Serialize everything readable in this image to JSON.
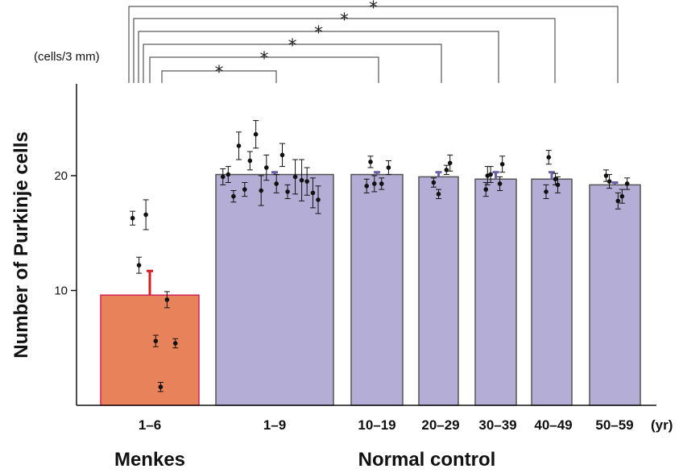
{
  "chart_data": {
    "type": "bar",
    "ylabel": "Number of Purkinje cells",
    "y_unit": "(cells/3 mm)",
    "x_unit": "(yr)",
    "ylim": [
      0,
      27
    ],
    "y_ticks": [
      10,
      20
    ],
    "categories": [
      "1–6",
      "1–9",
      "10–19",
      "20–29",
      "30–39",
      "40–49",
      "50–59"
    ],
    "groups": [
      {
        "label": "Menkes",
        "categories": [
          "1–6"
        ]
      },
      {
        "label": "Normal control",
        "categories": [
          "1–9",
          "10–19",
          "20–29",
          "30–39",
          "40–49",
          "50–59"
        ]
      }
    ],
    "bars": [
      {
        "category": "1–6",
        "group": "Menkes",
        "mean": 9.6,
        "sd_upper": 11.7,
        "color": "#e8825a",
        "edge": "#d0245a",
        "err_color": "#d42020"
      },
      {
        "category": "1–9",
        "group": "Normal control",
        "mean": 20.1,
        "sd_upper": 20.3,
        "color": "#b4aed6",
        "edge": "#555555",
        "err_color": "#6a5fa8"
      },
      {
        "category": "10–19",
        "group": "Normal control",
        "mean": 20.1,
        "sd_upper": 20.3,
        "color": "#b4aed6",
        "edge": "#555555",
        "err_color": "#6a5fa8"
      },
      {
        "category": "20–29",
        "group": "Normal control",
        "mean": 19.9,
        "sd_upper": 20.3,
        "color": "#b4aed6",
        "edge": "#555555",
        "err_color": "#6a5fa8"
      },
      {
        "category": "30–39",
        "group": "Normal control",
        "mean": 19.7,
        "sd_upper": 20.3,
        "color": "#b4aed6",
        "edge": "#555555",
        "err_color": "#6a5fa8"
      },
      {
        "category": "40–49",
        "group": "Normal control",
        "mean": 19.7,
        "sd_upper": 20.3,
        "color": "#b4aed6",
        "edge": "#555555",
        "err_color": "#6a5fa8"
      },
      {
        "category": "50–59",
        "group": "Normal control",
        "mean": 19.2,
        "sd_upper": 19.4,
        "color": "#b4aed6",
        "edge": "#555555",
        "err_color": "#6a5fa8"
      }
    ],
    "points": [
      {
        "category": "1–6",
        "offset": -0.35,
        "y": 16.3,
        "err": 0.6
      },
      {
        "category": "1–6",
        "offset": -0.22,
        "y": 12.2,
        "err": 0.7
      },
      {
        "category": "1–6",
        "offset": -0.08,
        "y": 16.6,
        "err": 1.3
      },
      {
        "category": "1–6",
        "offset": 0.12,
        "y": 5.6,
        "err": 0.5
      },
      {
        "category": "1–6",
        "offset": 0.22,
        "y": 1.6,
        "err": 0.4
      },
      {
        "category": "1–6",
        "offset": 0.35,
        "y": 9.2,
        "err": 0.7
      },
      {
        "category": "1–6",
        "offset": 0.52,
        "y": 5.4,
        "err": 0.4
      },
      {
        "category": "1–9",
        "offset": -0.88,
        "y": 19.9,
        "err": 0.7
      },
      {
        "category": "1–9",
        "offset": -0.79,
        "y": 20.1,
        "err": 0.7
      },
      {
        "category": "1–9",
        "offset": -0.7,
        "y": 18.2,
        "err": 0.5
      },
      {
        "category": "1–9",
        "offset": -0.61,
        "y": 22.6,
        "err": 1.2
      },
      {
        "category": "1–9",
        "offset": -0.51,
        "y": 18.8,
        "err": 0.6
      },
      {
        "category": "1–9",
        "offset": -0.42,
        "y": 21.3,
        "err": 0.8
      },
      {
        "category": "1–9",
        "offset": -0.32,
        "y": 23.6,
        "err": 1.2
      },
      {
        "category": "1–9",
        "offset": -0.23,
        "y": 18.7,
        "err": 1.3
      },
      {
        "category": "1–9",
        "offset": -0.14,
        "y": 20.7,
        "err": 1.1
      },
      {
        "category": "1–9",
        "offset": 0.03,
        "y": 19.3,
        "err": 0.8
      },
      {
        "category": "1–9",
        "offset": 0.13,
        "y": 21.8,
        "err": 1.0
      },
      {
        "category": "1–9",
        "offset": 0.22,
        "y": 18.6,
        "err": 0.6
      },
      {
        "category": "1–9",
        "offset": 0.35,
        "y": 19.9,
        "err": 1.5
      },
      {
        "category": "1–9",
        "offset": 0.46,
        "y": 19.6,
        "err": 1.8
      },
      {
        "category": "1–9",
        "offset": 0.55,
        "y": 19.5,
        "err": 1.2
      },
      {
        "category": "1–9",
        "offset": 0.65,
        "y": 18.5,
        "err": 1.3
      },
      {
        "category": "1–9",
        "offset": 0.74,
        "y": 17.9,
        "err": 1.2
      },
      {
        "category": "10–19",
        "offset": -0.4,
        "y": 19.1,
        "err": 0.6
      },
      {
        "category": "10–19",
        "offset": -0.25,
        "y": 21.2,
        "err": 0.5
      },
      {
        "category": "10–19",
        "offset": -0.1,
        "y": 19.3,
        "err": 0.7
      },
      {
        "category": "10–19",
        "offset": 0.18,
        "y": 19.3,
        "err": 0.5
      },
      {
        "category": "10–19",
        "offset": 0.45,
        "y": 20.7,
        "err": 0.6
      },
      {
        "category": "20–29",
        "offset": -0.25,
        "y": 19.4,
        "err": 0.4
      },
      {
        "category": "20–29",
        "offset": 0.0,
        "y": 18.4,
        "err": 0.4
      },
      {
        "category": "20–29",
        "offset": 0.4,
        "y": 20.5,
        "err": 0.4
      },
      {
        "category": "20–29",
        "offset": 0.58,
        "y": 21.1,
        "err": 0.7
      },
      {
        "category": "30–39",
        "offset": -0.48,
        "y": 18.8,
        "err": 0.6
      },
      {
        "category": "30–39",
        "offset": -0.4,
        "y": 20.0,
        "err": 0.8
      },
      {
        "category": "30–39",
        "offset": -0.25,
        "y": 20.1,
        "err": 0.7
      },
      {
        "category": "30–39",
        "offset": 0.2,
        "y": 19.3,
        "err": 0.6
      },
      {
        "category": "30–39",
        "offset": 0.32,
        "y": 21.0,
        "err": 0.7
      },
      {
        "category": "40–49",
        "offset": -0.28,
        "y": 18.6,
        "err": 0.6
      },
      {
        "category": "40–49",
        "offset": -0.15,
        "y": 21.6,
        "err": 0.6
      },
      {
        "category": "40–49",
        "offset": 0.18,
        "y": 19.7,
        "err": 0.5
      },
      {
        "category": "40–49",
        "offset": 0.3,
        "y": 19.2,
        "err": 0.7
      },
      {
        "category": "50–59",
        "offset": -0.35,
        "y": 20.0,
        "err": 0.5
      },
      {
        "category": "50–59",
        "offset": -0.22,
        "y": 19.5,
        "err": 0.6
      },
      {
        "category": "50–59",
        "offset": 0.12,
        "y": 17.8,
        "err": 0.7
      },
      {
        "category": "50–59",
        "offset": 0.28,
        "y": 18.2,
        "err": 0.6
      },
      {
        "category": "50–59",
        "offset": 0.48,
        "y": 19.3,
        "err": 0.5
      }
    ],
    "significance": [
      {
        "from": "1–6",
        "to": "1–9",
        "label": "*"
      },
      {
        "from": "1–6",
        "to": "10–19",
        "label": "*"
      },
      {
        "from": "1–6",
        "to": "20–29",
        "label": "*"
      },
      {
        "from": "1–6",
        "to": "30–39",
        "label": "*"
      },
      {
        "from": "1–6",
        "to": "40–49",
        "label": "*"
      },
      {
        "from": "1–6",
        "to": "50–59",
        "label": "*"
      }
    ]
  }
}
